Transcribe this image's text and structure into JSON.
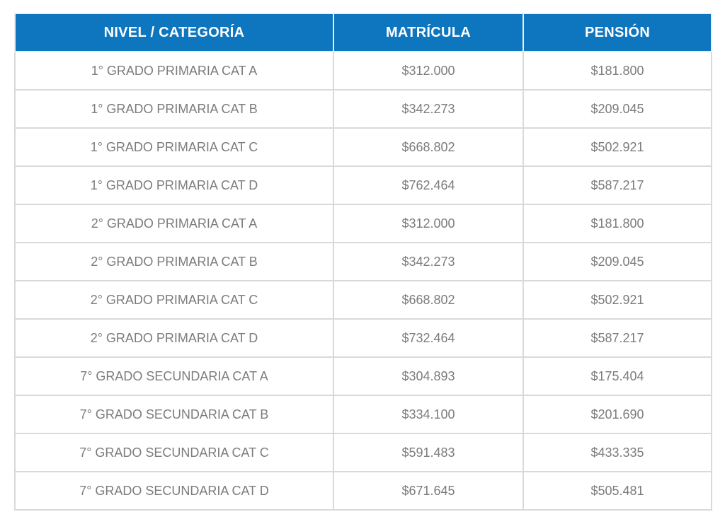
{
  "colors": {
    "header_bg": "#0E76BE",
    "header_text": "#FFFFFF",
    "body_text": "#7C7C7C",
    "row_bg": "#FFFFFF",
    "border": "#D9D9D9",
    "header_border": "#EEEEEE"
  },
  "table": {
    "columns": [
      "NIVEL / CATEGORÍA",
      "MATRÍCULA",
      "PENSIÓN"
    ],
    "rows": [
      [
        "1° GRADO PRIMARIA CAT A",
        "$312.000",
        "$181.800"
      ],
      [
        "1° GRADO PRIMARIA CAT B",
        "$342.273",
        "$209.045"
      ],
      [
        "1° GRADO PRIMARIA CAT C",
        "$668.802",
        "$502.921"
      ],
      [
        "1° GRADO PRIMARIA CAT D",
        "$762.464",
        "$587.217"
      ],
      [
        "2° GRADO PRIMARIA CAT A",
        "$312.000",
        "$181.800"
      ],
      [
        "2° GRADO PRIMARIA CAT B",
        "$342.273",
        "$209.045"
      ],
      [
        "2° GRADO PRIMARIA CAT C",
        "$668.802",
        "$502.921"
      ],
      [
        "2° GRADO PRIMARIA CAT D",
        "$732.464",
        "$587.217"
      ],
      [
        "7° GRADO SECUNDARIA CAT A",
        "$304.893",
        "$175.404"
      ],
      [
        "7° GRADO SECUNDARIA CAT B",
        "$334.100",
        "$201.690"
      ],
      [
        "7° GRADO SECUNDARIA CAT C",
        "$591.483",
        "$433.335"
      ],
      [
        "7° GRADO SECUNDARIA CAT D",
        "$671.645",
        "$505.481"
      ]
    ]
  }
}
